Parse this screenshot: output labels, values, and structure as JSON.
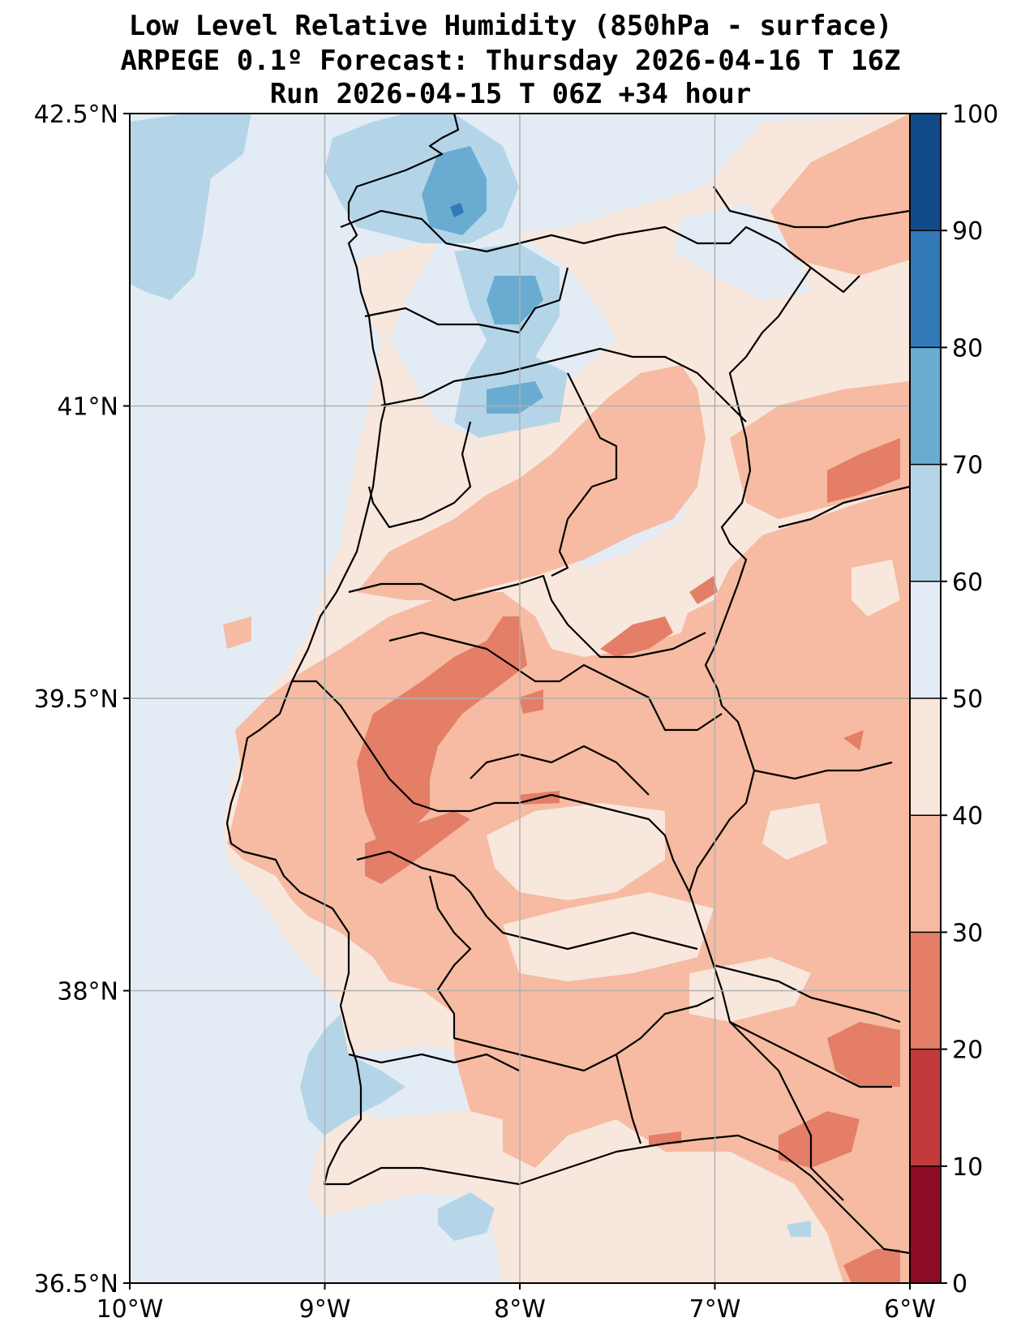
{
  "title": {
    "line1": "Low Level Relative Humidity (850hPa - surface)",
    "line2": "ARPEGE 0.1º Forecast: Thursday 2026-04-16 T 16Z",
    "line3": "Run 2026-04-15 T 06Z +34 hour"
  },
  "map": {
    "lon_range": [
      -10,
      -6
    ],
    "lat_range": [
      36.5,
      42.5
    ],
    "lat_ticks": [
      {
        "value": 42.5,
        "label": "42.5°N"
      },
      {
        "value": 41.0,
        "label": "41°N"
      },
      {
        "value": 39.5,
        "label": "39.5°N"
      },
      {
        "value": 38.0,
        "label": "38°N"
      },
      {
        "value": 36.5,
        "label": "36.5°N"
      }
    ],
    "lon_ticks": [
      {
        "value": -10,
        "label": "10°W"
      },
      {
        "value": -9,
        "label": "9°W"
      },
      {
        "value": -8,
        "label": "8°W"
      },
      {
        "value": -7,
        "label": "7°W"
      },
      {
        "value": -6,
        "label": "6°W"
      }
    ]
  },
  "colorbar": {
    "levels": [
      0,
      10,
      20,
      30,
      40,
      50,
      60,
      70,
      80,
      90,
      100
    ],
    "labels": [
      "0",
      "10",
      "20",
      "30",
      "40",
      "50",
      "60",
      "70",
      "80",
      "90",
      "100"
    ],
    "colors": [
      "#8e0b25",
      "#c33a3c",
      "#e47e67",
      "#f6bba2",
      "#f8e7dd",
      "#e3ecf4",
      "#b4d5e8",
      "#6aabd2",
      "#3279b8",
      "#124b8a"
    ]
  }
}
